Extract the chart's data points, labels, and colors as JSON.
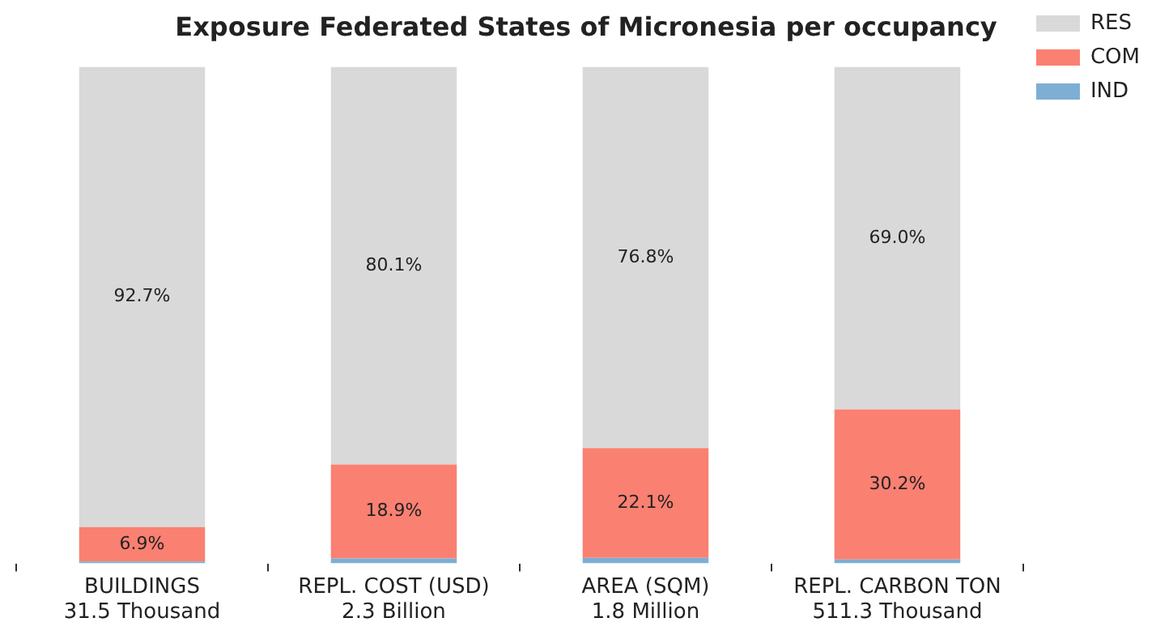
{
  "chart_data": {
    "type": "bar",
    "title": "Exposure Federated States of Micronesia per occupancy",
    "stacked": true,
    "legend": "top right",
    "grid": false,
    "categories": [
      "BUILDINGS\n31.5 Thousand",
      "REPL. COST (USD)\n2.3 Billion",
      "AREA (SQM)\n1.8 Million",
      "REPL. CARBON TON\n511.3 Thousand"
    ],
    "series": [
      {
        "name": "IND",
        "color": "#7eaed3",
        "values": [
          0.4,
          1.0,
          1.1,
          0.8
        ],
        "value_labels": [
          null,
          null,
          null,
          null
        ]
      },
      {
        "name": "COM",
        "color": "#fa8072",
        "values": [
          6.9,
          18.9,
          22.1,
          30.2
        ],
        "value_labels": [
          "6.9%",
          "18.9%",
          "22.1%",
          "30.2%"
        ]
      },
      {
        "name": "RES",
        "color": "#d9d9d9",
        "values": [
          92.7,
          80.1,
          76.8,
          69.0
        ],
        "value_labels": [
          "92.7%",
          "80.1%",
          "76.8%",
          "69.0%"
        ]
      }
    ]
  }
}
